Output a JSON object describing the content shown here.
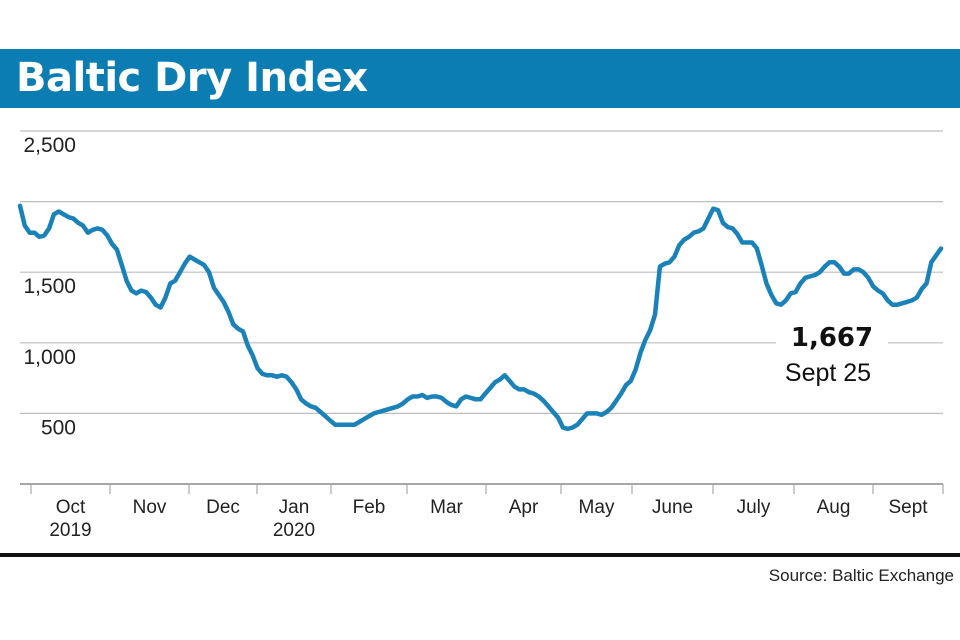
{
  "chart_data": {
    "type": "line",
    "title": "Baltic Dry Index",
    "xlabel": "",
    "ylabel": "",
    "ylim": [
      0,
      2500
    ],
    "yticks": [
      2500,
      2000,
      1500,
      1000,
      500,
      0
    ],
    "ytick_labels": [
      "2,500",
      "",
      "1,500",
      "1,000",
      "500",
      ""
    ],
    "grid": true,
    "x_tick_labels": [
      "Oct\n2019",
      "Nov",
      "Dec",
      "Jan\n2020",
      "Feb",
      "Mar",
      "Apr",
      "May",
      "June",
      "July",
      "Aug",
      "Sept"
    ],
    "series": [
      {
        "name": "Baltic Dry Index",
        "color": "#1a82b8",
        "values": [
          1970,
          1830,
          1780,
          1780,
          1750,
          1760,
          1810,
          1910,
          1930,
          1910,
          1890,
          1880,
          1850,
          1830,
          1780,
          1800,
          1810,
          1800,
          1760,
          1700,
          1660,
          1550,
          1440,
          1370,
          1350,
          1370,
          1360,
          1320,
          1270,
          1250,
          1320,
          1420,
          1440,
          1500,
          1560,
          1610,
          1590,
          1570,
          1550,
          1500,
          1390,
          1340,
          1290,
          1220,
          1130,
          1100,
          1080,
          980,
          910,
          820,
          780,
          770,
          770,
          760,
          770,
          760,
          720,
          670,
          600,
          570,
          550,
          540,
          510,
          480,
          450,
          420,
          420,
          420,
          420,
          420,
          440,
          460,
          480,
          500,
          510,
          520,
          530,
          540,
          550,
          570,
          600,
          620,
          620,
          630,
          610,
          620,
          620,
          610,
          580,
          560,
          550,
          600,
          620,
          610,
          600,
          600,
          640,
          680,
          720,
          740,
          770,
          730,
          690,
          670,
          670,
          650,
          640,
          620,
          590,
          550,
          510,
          470,
          400,
          390,
          400,
          420,
          460,
          500,
          500,
          500,
          490,
          510,
          540,
          590,
          640,
          700,
          730,
          810,
          930,
          1020,
          1090,
          1200,
          1540,
          1560,
          1570,
          1610,
          1690,
          1730,
          1750,
          1780,
          1790,
          1810,
          1880,
          1950,
          1940,
          1850,
          1820,
          1810,
          1770,
          1710,
          1710,
          1710,
          1670,
          1550,
          1420,
          1340,
          1280,
          1270,
          1300,
          1350,
          1360,
          1420,
          1460,
          1470,
          1480,
          1500,
          1540,
          1570,
          1570,
          1540,
          1490,
          1490,
          1520,
          1520,
          1500,
          1460,
          1400,
          1370,
          1350,
          1300,
          1270,
          1270,
          1280,
          1290,
          1300,
          1320,
          1380,
          1420,
          1570,
          1620,
          1667
        ]
      }
    ],
    "annotation": {
      "value": "1,667",
      "label": "Sept 25"
    }
  },
  "source": "Source: Baltic Exchange"
}
